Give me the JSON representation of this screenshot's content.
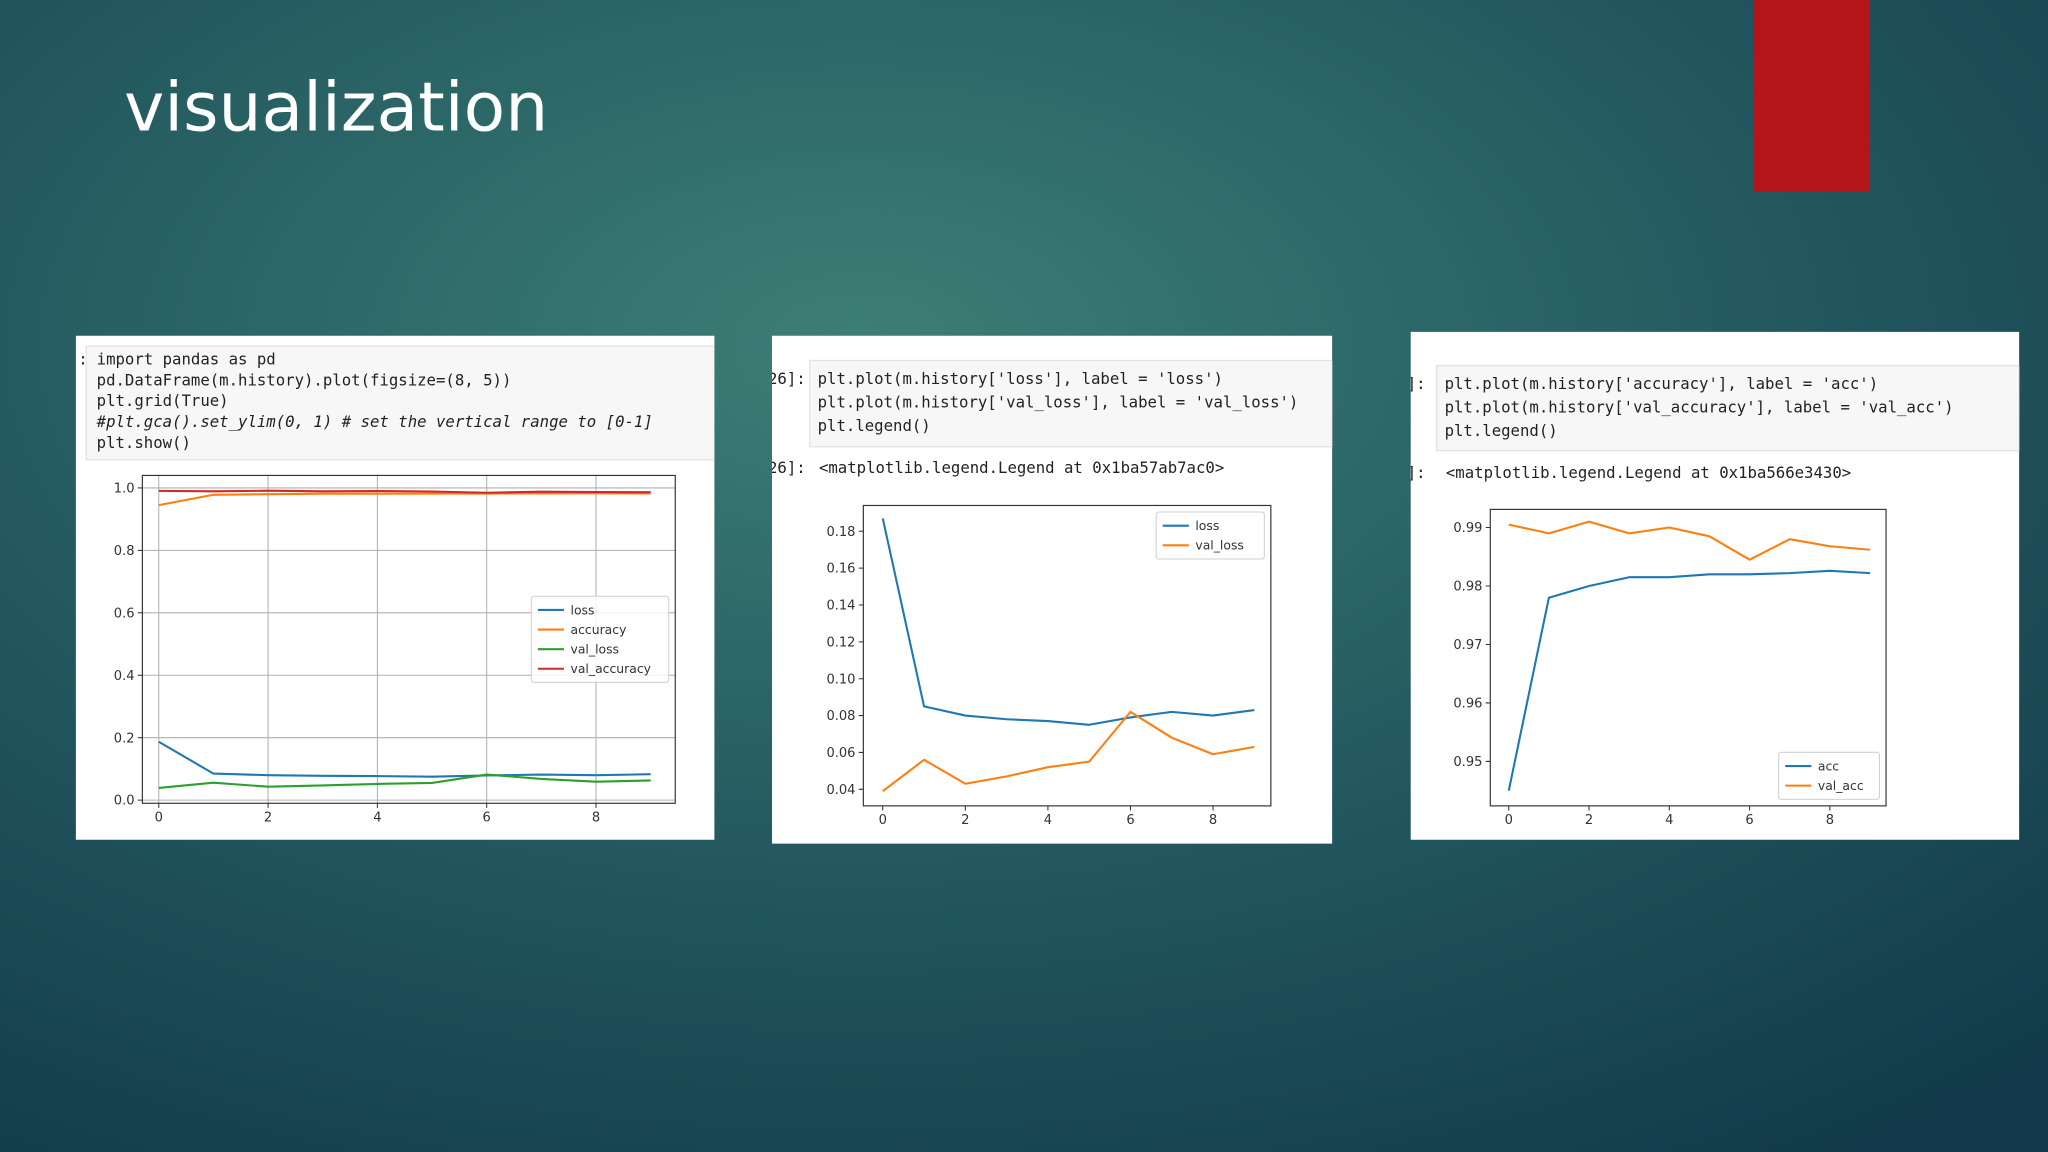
{
  "title": "visualization",
  "panels": [
    {
      "code_prompt": ":",
      "code": [
        "import pandas as pd",
        "pd.DataFrame(m.history).plot(figsize=(8, 5))",
        "plt.grid(True)",
        "#plt.gca().set_ylim(0, 1) # set the vertical range to [0-1]",
        "plt.show()"
      ],
      "chart": {
        "type": "line",
        "x": [
          0,
          1,
          2,
          3,
          4,
          5,
          6,
          7,
          8,
          9
        ],
        "xlim": [
          -0.3,
          9.45
        ],
        "xticks": [
          0,
          2,
          4,
          6,
          8
        ],
        "ylim": [
          -0.01,
          1.04
        ],
        "yticks": [
          {
            "value": 0,
            "label": "0.0"
          },
          {
            "value": 0.2,
            "label": "0.2"
          },
          {
            "value": 0.4,
            "label": "0.4"
          },
          {
            "value": 0.6,
            "label": "0.6"
          },
          {
            "value": 0.8,
            "label": "0.8"
          },
          {
            "value": 1,
            "label": "1.0"
          }
        ],
        "grid": true,
        "legend": "center right",
        "series": [
          {
            "name": "loss",
            "color": "#1f77b4",
            "values": [
              0.187,
              0.085,
              0.08,
              0.078,
              0.077,
              0.075,
              0.079,
              0.082,
              0.08,
              0.083
            ]
          },
          {
            "name": "accuracy",
            "color": "#ff7f0e",
            "values": [
              0.945,
              0.978,
              0.98,
              0.9815,
              0.9815,
              0.982,
              0.982,
              0.9822,
              0.9826,
              0.9822
            ]
          },
          {
            "name": "val_loss",
            "color": "#2ca02c",
            "values": [
              0.039,
              0.056,
              0.043,
              0.047,
              0.052,
              0.055,
              0.082,
              0.068,
              0.059,
              0.063
            ]
          },
          {
            "name": "val_accuracy",
            "color": "#d62728",
            "values": [
              0.9905,
              0.989,
              0.991,
              0.989,
              0.99,
              0.9885,
              0.9845,
              0.988,
              0.9868,
              0.9862
            ]
          }
        ]
      }
    },
    {
      "code_prompt": "26]:",
      "code": [
        "plt.plot(m.history['loss'], label = 'loss')",
        "plt.plot(m.history['val_loss'], label = 'val_loss')",
        "plt.legend()"
      ],
      "output_prompt": "26]:",
      "output": "<matplotlib.legend.Legend at 0x1ba57ab7ac0>",
      "chart": {
        "type": "line",
        "x": [
          0,
          1,
          2,
          3,
          4,
          5,
          6,
          7,
          8,
          9
        ],
        "xlim": [
          -0.47,
          9.4
        ],
        "xticks": [
          0,
          2,
          4,
          6,
          8
        ],
        "ylim": [
          0.031,
          0.194
        ],
        "yticks": [
          0.04,
          0.06,
          0.08,
          {
            "value": 0.1,
            "label": "0.10"
          },
          0.12,
          0.14,
          0.16,
          0.18
        ],
        "grid": false,
        "legend": "upper right",
        "series": [
          {
            "name": "loss",
            "color": "#1f77b4",
            "values": [
              0.187,
              0.085,
              0.08,
              0.078,
              0.077,
              0.075,
              0.079,
              0.082,
              0.08,
              0.083
            ]
          },
          {
            "name": "val_loss",
            "color": "#ff7f0e",
            "values": [
              0.039,
              0.056,
              0.043,
              0.047,
              0.052,
              0.055,
              0.082,
              0.068,
              0.059,
              0.063
            ]
          }
        ]
      }
    },
    {
      "code_prompt": "]:",
      "code": [
        "plt.plot(m.history['accuracy'], label = 'acc')",
        "plt.plot(m.history['val_accuracy'], label = 'val_acc')",
        "plt.legend()"
      ],
      "output_prompt": "]:",
      "output": "<matplotlib.legend.Legend at 0x1ba566e3430>",
      "chart": {
        "type": "line",
        "x": [
          0,
          1,
          2,
          3,
          4,
          5,
          6,
          7,
          8,
          9
        ],
        "xlim": [
          -0.46,
          9.4
        ],
        "xticks": [
          0,
          2,
          4,
          6,
          8
        ],
        "ylim": [
          0.9424,
          0.9931
        ],
        "yticks": [
          0.95,
          0.96,
          0.97,
          0.98,
          0.99
        ],
        "grid": false,
        "legend": "lower right",
        "series": [
          {
            "name": "acc",
            "color": "#1f77b4",
            "values": [
              0.945,
              0.978,
              0.98,
              0.9815,
              0.9815,
              0.982,
              0.982,
              0.9822,
              0.9826,
              0.9822
            ]
          },
          {
            "name": "val_acc",
            "color": "#ff7f0e",
            "values": [
              0.9905,
              0.989,
              0.991,
              0.989,
              0.99,
              0.9885,
              0.9845,
              0.988,
              0.9868,
              0.9862
            ]
          }
        ]
      }
    }
  ]
}
